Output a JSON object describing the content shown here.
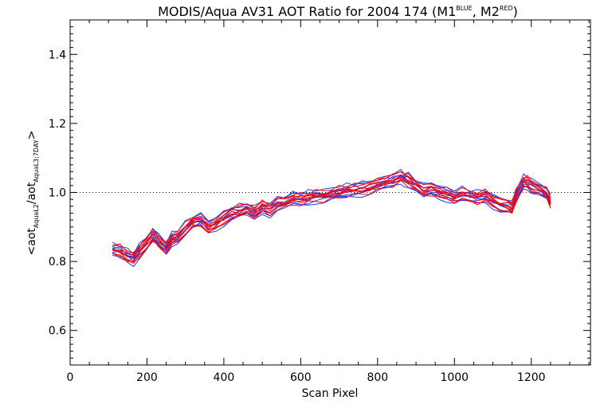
{
  "chart_data": {
    "type": "line",
    "title": {
      "main": "MODIS/Aqua AV31 AOT Ratio for 2004 174 (M1",
      "sup1": "BLUE",
      "mid": ", M2",
      "sup2": "RED",
      "end": ")"
    },
    "xlabel": "Scan Pixel",
    "ylabel": {
      "pre": "<aot",
      "sub1": "AquaL2",
      "mid": "/aot",
      "sub2": "AquaL3;7DAY",
      "post": ">"
    },
    "xlim": [
      0,
      1354
    ],
    "ylim": [
      0.5,
      1.5
    ],
    "x_ticks": [
      0,
      200,
      400,
      600,
      800,
      1000,
      1200
    ],
    "y_ticks": [
      0.6,
      0.8,
      1.0,
      1.2,
      1.4
    ],
    "y_tick_labels": [
      "0.6",
      "0.8",
      "1.0",
      "1.2",
      "1.4"
    ],
    "reference_line": 1.0,
    "grid": false,
    "colors": {
      "M1": "#1a3cff",
      "M2": "#ff0000"
    },
    "x": [
      110,
      130,
      150,
      165,
      180,
      200,
      215,
      230,
      250,
      265,
      280,
      300,
      320,
      340,
      360,
      380,
      400,
      420,
      440,
      460,
      480,
      500,
      520,
      540,
      560,
      580,
      600,
      620,
      640,
      660,
      680,
      700,
      720,
      740,
      760,
      780,
      800,
      820,
      840,
      860,
      870,
      880,
      900,
      920,
      940,
      960,
      980,
      1000,
      1020,
      1040,
      1060,
      1080,
      1100,
      1120,
      1140,
      1150,
      1160,
      1180,
      1190,
      1200,
      1220,
      1240,
      1250
    ],
    "base_curve": [
      0.835,
      0.83,
      0.815,
      0.808,
      0.83,
      0.855,
      0.875,
      0.862,
      0.838,
      0.865,
      0.875,
      0.895,
      0.915,
      0.92,
      0.9,
      0.91,
      0.925,
      0.94,
      0.945,
      0.952,
      0.94,
      0.958,
      0.95,
      0.968,
      0.97,
      0.98,
      0.98,
      0.985,
      0.99,
      0.99,
      0.995,
      1.0,
      1.005,
      1.008,
      1.01,
      1.015,
      1.02,
      1.03,
      1.035,
      1.045,
      1.04,
      1.035,
      1.02,
      1.005,
      1.01,
      1.0,
      0.995,
      0.99,
      0.995,
      0.99,
      0.985,
      0.99,
      0.975,
      0.965,
      0.96,
      0.955,
      0.99,
      1.03,
      1.03,
      1.02,
      1.01,
      0.995,
      0.975
    ],
    "series": [
      {
        "group": "M1",
        "offset": -0.012
      },
      {
        "group": "M1",
        "offset": -0.006
      },
      {
        "group": "M1",
        "offset": 0.0
      },
      {
        "group": "M1",
        "offset": 0.006
      },
      {
        "group": "M1",
        "offset": 0.012
      },
      {
        "group": "M1",
        "offset": -0.018
      },
      {
        "group": "M1",
        "offset": 0.018
      },
      {
        "group": "M1",
        "offset": -0.003
      },
      {
        "group": "M2",
        "offset": -0.01
      },
      {
        "group": "M2",
        "offset": -0.005
      },
      {
        "group": "M2",
        "offset": 0.0
      },
      {
        "group": "M2",
        "offset": 0.005
      },
      {
        "group": "M2",
        "offset": 0.01
      },
      {
        "group": "M2",
        "offset": -0.015
      },
      {
        "group": "M2",
        "offset": 0.015
      },
      {
        "group": "M2",
        "offset": 0.002
      }
    ]
  }
}
